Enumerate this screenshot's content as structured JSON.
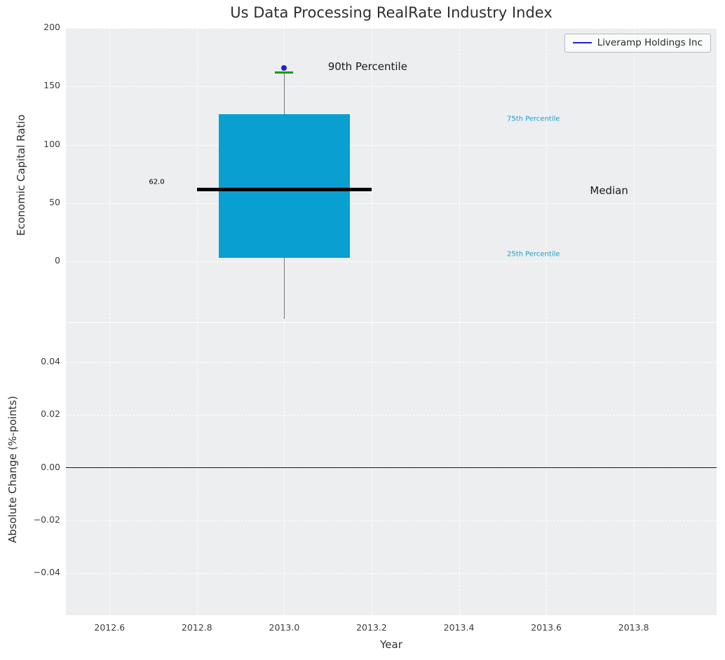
{
  "title": "Us Data Processing RealRate Industry Index",
  "legend": {
    "label": "Liveramp Holdings Inc",
    "line_color": "#2222cc"
  },
  "chart_data": {
    "type": "boxplot",
    "title": "Us Data Processing RealRate Industry Index",
    "xlabel": "Year",
    "xlim": [
      2012.5,
      2013.99
    ],
    "x_ticks": [
      2012.6,
      2012.8,
      2013.0,
      2013.2,
      2013.4,
      2013.6,
      2013.8
    ],
    "x_tick_labels": [
      "2012.6",
      "2012.8",
      "2013.0",
      "2013.2",
      "2013.4",
      "2013.6",
      "2013.8"
    ],
    "grid": "white-dashed",
    "axes_background": "#eceef0",
    "legend_position": "upper right",
    "subplots": [
      {
        "name": "economic-capital-ratio",
        "ylabel": "Economic Capital Ratio",
        "ylim": [
          -52,
          200
        ],
        "y_ticks": [
          0,
          50,
          100,
          150,
          200
        ],
        "y_tick_labels": [
          "0",
          "50",
          "100",
          "150",
          "200"
        ],
        "box": {
          "year": 2013.0,
          "x_left": 2012.85,
          "x_right": 2013.15,
          "q1": 3,
          "median": 62,
          "q3": 126,
          "p90": 162,
          "whisker_low": -49,
          "whisker_high": 162,
          "box_color": "#0a9fd1",
          "median_color": "#000000",
          "p90_color": "#00a000",
          "whisker_color": "#777777"
        },
        "median_line": {
          "x0": 2012.8,
          "x1": 2013.2,
          "y": 62
        },
        "point": {
          "x": 2013.0,
          "y": 166,
          "color": "#2222cc",
          "label": "Liveramp Holdings Inc"
        },
        "annotations": [
          {
            "text": "62.0",
            "x": 2012.69,
            "y": 68,
            "color": "#000000",
            "size": 10
          },
          {
            "text": "90th Percentile",
            "x": 2013.1,
            "y": 167,
            "color": "#1a1a1a",
            "size": 15
          },
          {
            "text": "75th Percentile",
            "x": 2013.51,
            "y": 122,
            "color": "#1b9fc9",
            "size": 10
          },
          {
            "text": "Median",
            "x": 2013.7,
            "y": 61,
            "color": "#1a1a1a",
            "size": 15
          },
          {
            "text": "25th Percentile",
            "x": 2013.51,
            "y": 6,
            "color": "#1b9fc9",
            "size": 10
          }
        ]
      },
      {
        "name": "absolute-change",
        "ylabel": "Absolute Change (%-points)",
        "ylim": [
          -0.056,
          0.055
        ],
        "y_ticks": [
          -0.04,
          -0.02,
          0,
          0.02,
          0.04
        ],
        "y_tick_labels": [
          "−0.04",
          "−0.02",
          "0.00",
          "0.02",
          "0.04"
        ],
        "zero_line_y": 0
      }
    ]
  }
}
